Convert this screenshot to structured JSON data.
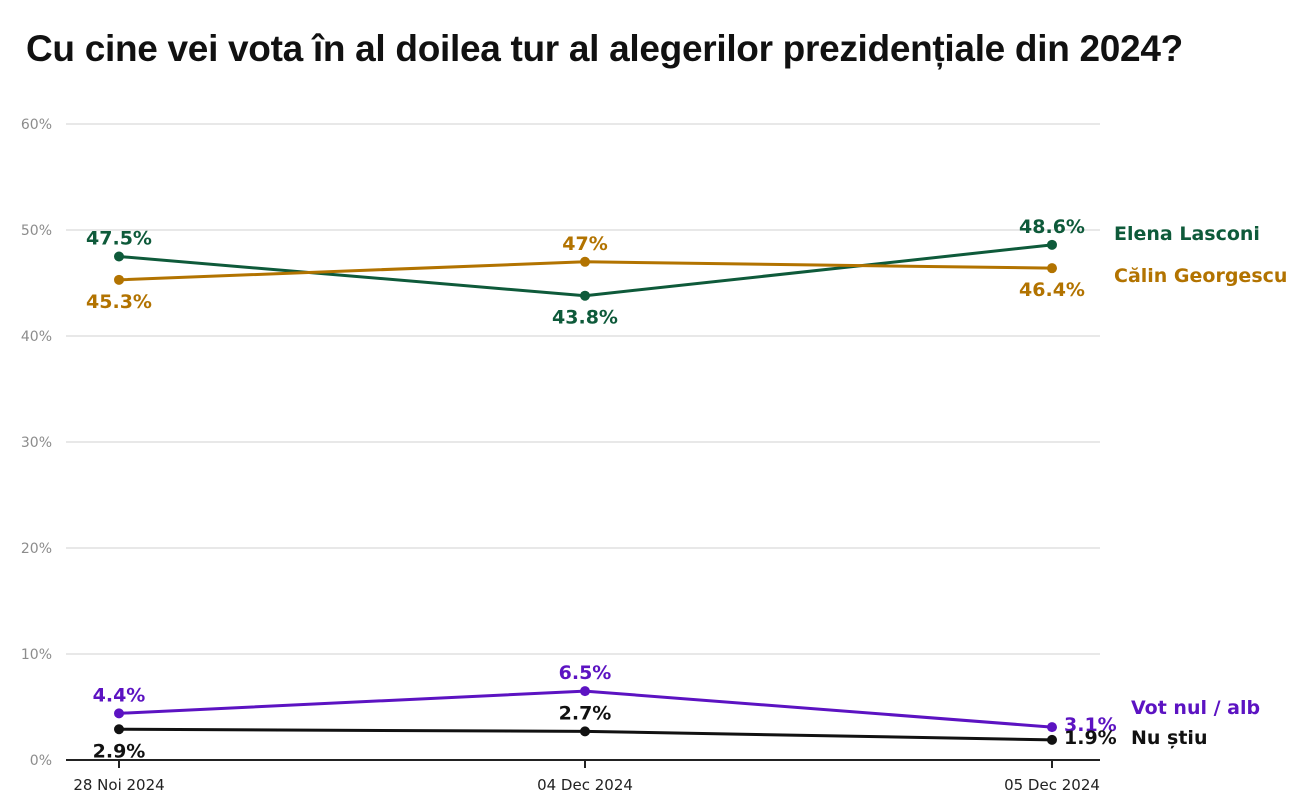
{
  "chart_data": {
    "type": "line",
    "title": "Cu cine vei vota în al doilea tur al alegerilor prezidențiale din 2024?",
    "x": [
      "28 Noi 2024",
      "04 Dec 2024",
      "05 Dec 2024"
    ],
    "ylim": [
      0,
      60
    ],
    "yticks": [
      0,
      10,
      20,
      30,
      40,
      50,
      60
    ],
    "ytick_labels": [
      "0%",
      "10%",
      "20%",
      "30%",
      "40%",
      "50%",
      "60%"
    ],
    "grid": true,
    "legend": "direct labels at right end of lines",
    "series": [
      {
        "name": "Elena Lasconi",
        "color": "#0e5a3a",
        "values": [
          47.5,
          43.8,
          48.6
        ],
        "labels": [
          "47.5%",
          "43.8%",
          "48.6%"
        ],
        "label_pos": [
          "above",
          "below",
          "above"
        ]
      },
      {
        "name": "Călin Georgescu",
        "color": "#b27300",
        "values": [
          45.3,
          47,
          46.4
        ],
        "labels": [
          "45.3%",
          "47%",
          "46.4%"
        ],
        "label_pos": [
          "below",
          "above",
          "below"
        ]
      },
      {
        "name": "Vot nul / alb",
        "color": "#5c13c2",
        "values": [
          4.4,
          6.5,
          3.1
        ],
        "labels": [
          "4.4%",
          "6.5%",
          "3.1%"
        ],
        "label_pos": [
          "above",
          "above",
          "right"
        ]
      },
      {
        "name": "Nu știu",
        "color": "#111111",
        "values": [
          2.9,
          2.7,
          1.9
        ],
        "labels": [
          "2.9%",
          "2.7%",
          "1.9%"
        ],
        "label_pos": [
          "below",
          "above",
          "right"
        ]
      }
    ]
  }
}
